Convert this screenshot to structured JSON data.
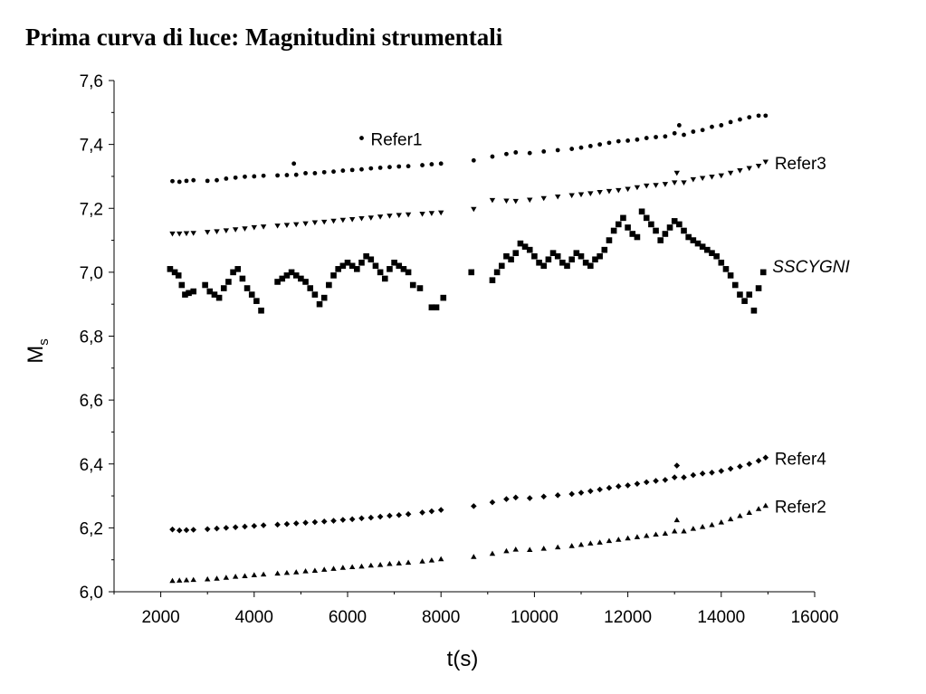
{
  "title": "Prima curva di luce: Magnitudini strumentali",
  "chart_data": {
    "type": "scatter",
    "title": "Prima curva di luce: Magnitudini strumentali",
    "xlabel": "t(s)",
    "ylabel_main": "M",
    "ylabel_sub": "s",
    "xlim": [
      1000,
      16000
    ],
    "ylim": [
      6.0,
      7.6
    ],
    "x_ticks": [
      "2000",
      "4000",
      "6000",
      "8000",
      "10000",
      "12000",
      "14000",
      "16000"
    ],
    "y_ticks": [
      "6,0",
      "6,2",
      "6,4",
      "6,6",
      "6,8",
      "7,0",
      "7,2",
      "7,4",
      "7,6"
    ],
    "grid": false,
    "series": [
      {
        "name": "Refer1",
        "marker": "circle",
        "label_italic": false,
        "x": [
          2250,
          2400,
          2550,
          2700,
          3000,
          3200,
          3400,
          3600,
          3800,
          4000,
          4200,
          4500,
          4700,
          4900,
          5100,
          5300,
          5500,
          5700,
          5900,
          6100,
          6300,
          6500,
          6700,
          6900,
          7100,
          7300,
          7600,
          7800,
          8000,
          8700,
          9100,
          9400,
          9600,
          9900,
          10200,
          10500,
          10800,
          11000,
          11200,
          11400,
          11600,
          11800,
          12000,
          12200,
          12400,
          12600,
          12800,
          13000,
          13100,
          13200,
          13400,
          13600,
          13800,
          14000,
          14200,
          14400,
          14600,
          14800,
          14950,
          4850,
          6300
        ],
        "y": [
          7.285,
          7.283,
          7.286,
          7.288,
          7.286,
          7.288,
          7.293,
          7.296,
          7.299,
          7.3,
          7.302,
          7.303,
          7.304,
          7.305,
          7.31,
          7.31,
          7.313,
          7.315,
          7.318,
          7.32,
          7.322,
          7.325,
          7.327,
          7.329,
          7.331,
          7.332,
          7.335,
          7.338,
          7.34,
          7.35,
          7.362,
          7.37,
          7.375,
          7.373,
          7.378,
          7.382,
          7.386,
          7.39,
          7.395,
          7.4,
          7.405,
          7.41,
          7.412,
          7.415,
          7.42,
          7.423,
          7.425,
          7.435,
          7.46,
          7.43,
          7.44,
          7.445,
          7.455,
          7.46,
          7.47,
          7.478,
          7.485,
          7.49,
          7.49,
          7.34,
          7.42
        ]
      },
      {
        "name": "Refer3",
        "marker": "triangle-down",
        "label_italic": false,
        "x": [
          2250,
          2400,
          2550,
          2700,
          3000,
          3200,
          3400,
          3600,
          3800,
          4000,
          4200,
          4500,
          4700,
          4900,
          5100,
          5300,
          5500,
          5700,
          5900,
          6100,
          6300,
          6500,
          6700,
          6900,
          7100,
          7300,
          7600,
          7800,
          8000,
          8700,
          9100,
          9400,
          9600,
          9900,
          10200,
          10500,
          10800,
          11000,
          11200,
          11400,
          11600,
          11800,
          12000,
          12200,
          12400,
          12600,
          12800,
          13000,
          13050,
          13200,
          13400,
          13600,
          13800,
          14000,
          14200,
          14400,
          14600,
          14800,
          14950
        ],
        "y": [
          7.12,
          7.12,
          7.121,
          7.122,
          7.125,
          7.127,
          7.13,
          7.133,
          7.136,
          7.14,
          7.142,
          7.145,
          7.147,
          7.149,
          7.152,
          7.155,
          7.157,
          7.16,
          7.163,
          7.165,
          7.168,
          7.17,
          7.173,
          7.176,
          7.178,
          7.18,
          7.182,
          7.184,
          7.186,
          7.197,
          7.225,
          7.223,
          7.222,
          7.226,
          7.231,
          7.236,
          7.24,
          7.243,
          7.246,
          7.25,
          7.253,
          7.256,
          7.26,
          7.265,
          7.27,
          7.272,
          7.275,
          7.28,
          7.31,
          7.28,
          7.29,
          7.294,
          7.298,
          7.302,
          7.31,
          7.318,
          7.325,
          7.332,
          7.345
        ]
      },
      {
        "name": "SSCYGNI",
        "marker": "square",
        "label_italic": true,
        "x": [
          2200,
          2300,
          2380,
          2450,
          2520,
          2600,
          2700,
          2950,
          3050,
          3150,
          3250,
          3350,
          3450,
          3550,
          3650,
          3750,
          3850,
          3950,
          4050,
          4150,
          4500,
          4600,
          4700,
          4800,
          4900,
          5000,
          5100,
          5200,
          5300,
          5400,
          5500,
          5600,
          5700,
          5800,
          5900,
          6000,
          6100,
          6200,
          6300,
          6400,
          6500,
          6600,
          6700,
          6800,
          6900,
          7000,
          7100,
          7200,
          7300,
          7400,
          7550,
          7800,
          7900,
          8050,
          8650,
          9100,
          9200,
          9300,
          9400,
          9500,
          9600,
          9700,
          9800,
          9900,
          10000,
          10100,
          10200,
          10300,
          10400,
          10500,
          10600,
          10700,
          10800,
          10900,
          11000,
          11100,
          11200,
          11300,
          11400,
          11500,
          11600,
          11700,
          11800,
          11900,
          12000,
          12100,
          12200,
          12300,
          12400,
          12500,
          12600,
          12700,
          12800,
          12900,
          13000,
          13100,
          13200,
          13300,
          13400,
          13500,
          13600,
          13700,
          13800,
          13900,
          14000,
          14100,
          14200,
          14300,
          14400,
          14500,
          14600,
          14700,
          14800,
          14900
        ],
        "y": [
          7.01,
          7.0,
          6.99,
          6.96,
          6.93,
          6.935,
          6.94,
          6.96,
          6.94,
          6.93,
          6.92,
          6.95,
          6.97,
          7.0,
          7.01,
          6.98,
          6.95,
          6.93,
          6.91,
          6.88,
          6.97,
          6.98,
          6.99,
          7.0,
          6.99,
          6.98,
          6.97,
          6.95,
          6.93,
          6.9,
          6.92,
          6.96,
          6.99,
          7.01,
          7.02,
          7.03,
          7.02,
          7.01,
          7.03,
          7.05,
          7.04,
          7.02,
          7.0,
          6.98,
          7.01,
          7.03,
          7.02,
          7.01,
          7.0,
          6.96,
          6.95,
          6.89,
          6.89,
          6.92,
          7.0,
          6.975,
          7.0,
          7.02,
          7.05,
          7.04,
          7.06,
          7.09,
          7.08,
          7.07,
          7.05,
          7.03,
          7.02,
          7.04,
          7.06,
          7.05,
          7.03,
          7.02,
          7.04,
          7.06,
          7.05,
          7.03,
          7.02,
          7.04,
          7.05,
          7.07,
          7.1,
          7.13,
          7.15,
          7.17,
          7.14,
          7.12,
          7.11,
          7.19,
          7.17,
          7.15,
          7.13,
          7.1,
          7.12,
          7.14,
          7.16,
          7.15,
          7.13,
          7.11,
          7.1,
          7.09,
          7.08,
          7.07,
          7.06,
          7.05,
          7.03,
          7.01,
          6.99,
          6.96,
          6.93,
          6.91,
          6.93,
          6.88,
          6.95,
          7.0
        ]
      },
      {
        "name": "Refer4",
        "marker": "diamond",
        "label_italic": false,
        "x": [
          2250,
          2400,
          2550,
          2700,
          3000,
          3200,
          3400,
          3600,
          3800,
          4000,
          4200,
          4500,
          4700,
          4900,
          5100,
          5300,
          5500,
          5700,
          5900,
          6100,
          6300,
          6500,
          6700,
          6900,
          7100,
          7300,
          7600,
          7800,
          8000,
          8700,
          9100,
          9400,
          9600,
          9900,
          10200,
          10500,
          10800,
          11000,
          11200,
          11400,
          11600,
          11800,
          12000,
          12200,
          12400,
          12600,
          12800,
          13000,
          13050,
          13200,
          13400,
          13600,
          13800,
          14000,
          14200,
          14400,
          14600,
          14800,
          14950
        ],
        "y": [
          6.195,
          6.192,
          6.193,
          6.194,
          6.196,
          6.198,
          6.2,
          6.202,
          6.204,
          6.206,
          6.208,
          6.21,
          6.212,
          6.214,
          6.216,
          6.218,
          6.22,
          6.222,
          6.225,
          6.227,
          6.23,
          6.232,
          6.235,
          6.238,
          6.24,
          6.243,
          6.248,
          6.252,
          6.256,
          6.268,
          6.28,
          6.29,
          6.295,
          6.293,
          6.298,
          6.302,
          6.306,
          6.31,
          6.315,
          6.32,
          6.325,
          6.33,
          6.333,
          6.338,
          6.343,
          6.347,
          6.35,
          6.358,
          6.395,
          6.358,
          6.365,
          6.37,
          6.373,
          6.378,
          6.385,
          6.392,
          6.4,
          6.41,
          6.42
        ]
      },
      {
        "name": "Refer2",
        "marker": "triangle-up",
        "label_italic": false,
        "x": [
          2250,
          2400,
          2550,
          2700,
          3000,
          3200,
          3400,
          3600,
          3800,
          4000,
          4200,
          4500,
          4700,
          4900,
          5100,
          5300,
          5500,
          5700,
          5900,
          6100,
          6300,
          6500,
          6700,
          6900,
          7100,
          7300,
          7600,
          7800,
          8000,
          8700,
          9100,
          9400,
          9600,
          9900,
          10200,
          10500,
          10800,
          11000,
          11200,
          11400,
          11600,
          11800,
          12000,
          12200,
          12400,
          12600,
          12800,
          13000,
          13050,
          13200,
          13400,
          13600,
          13800,
          14000,
          14200,
          14400,
          14600,
          14800,
          14950
        ],
        "y": [
          6.035,
          6.036,
          6.037,
          6.038,
          6.04,
          6.042,
          6.045,
          6.048,
          6.05,
          6.053,
          6.055,
          6.058,
          6.06,
          6.062,
          6.065,
          6.067,
          6.07,
          6.073,
          6.076,
          6.078,
          6.08,
          6.083,
          6.085,
          6.088,
          6.09,
          6.092,
          6.096,
          6.099,
          6.103,
          6.11,
          6.12,
          6.128,
          6.133,
          6.132,
          6.136,
          6.14,
          6.144,
          6.148,
          6.152,
          6.155,
          6.16,
          6.164,
          6.168,
          6.172,
          6.176,
          6.18,
          6.183,
          6.19,
          6.225,
          6.19,
          6.198,
          6.204,
          6.21,
          6.218,
          6.228,
          6.238,
          6.248,
          6.26,
          6.27
        ]
      }
    ]
  }
}
